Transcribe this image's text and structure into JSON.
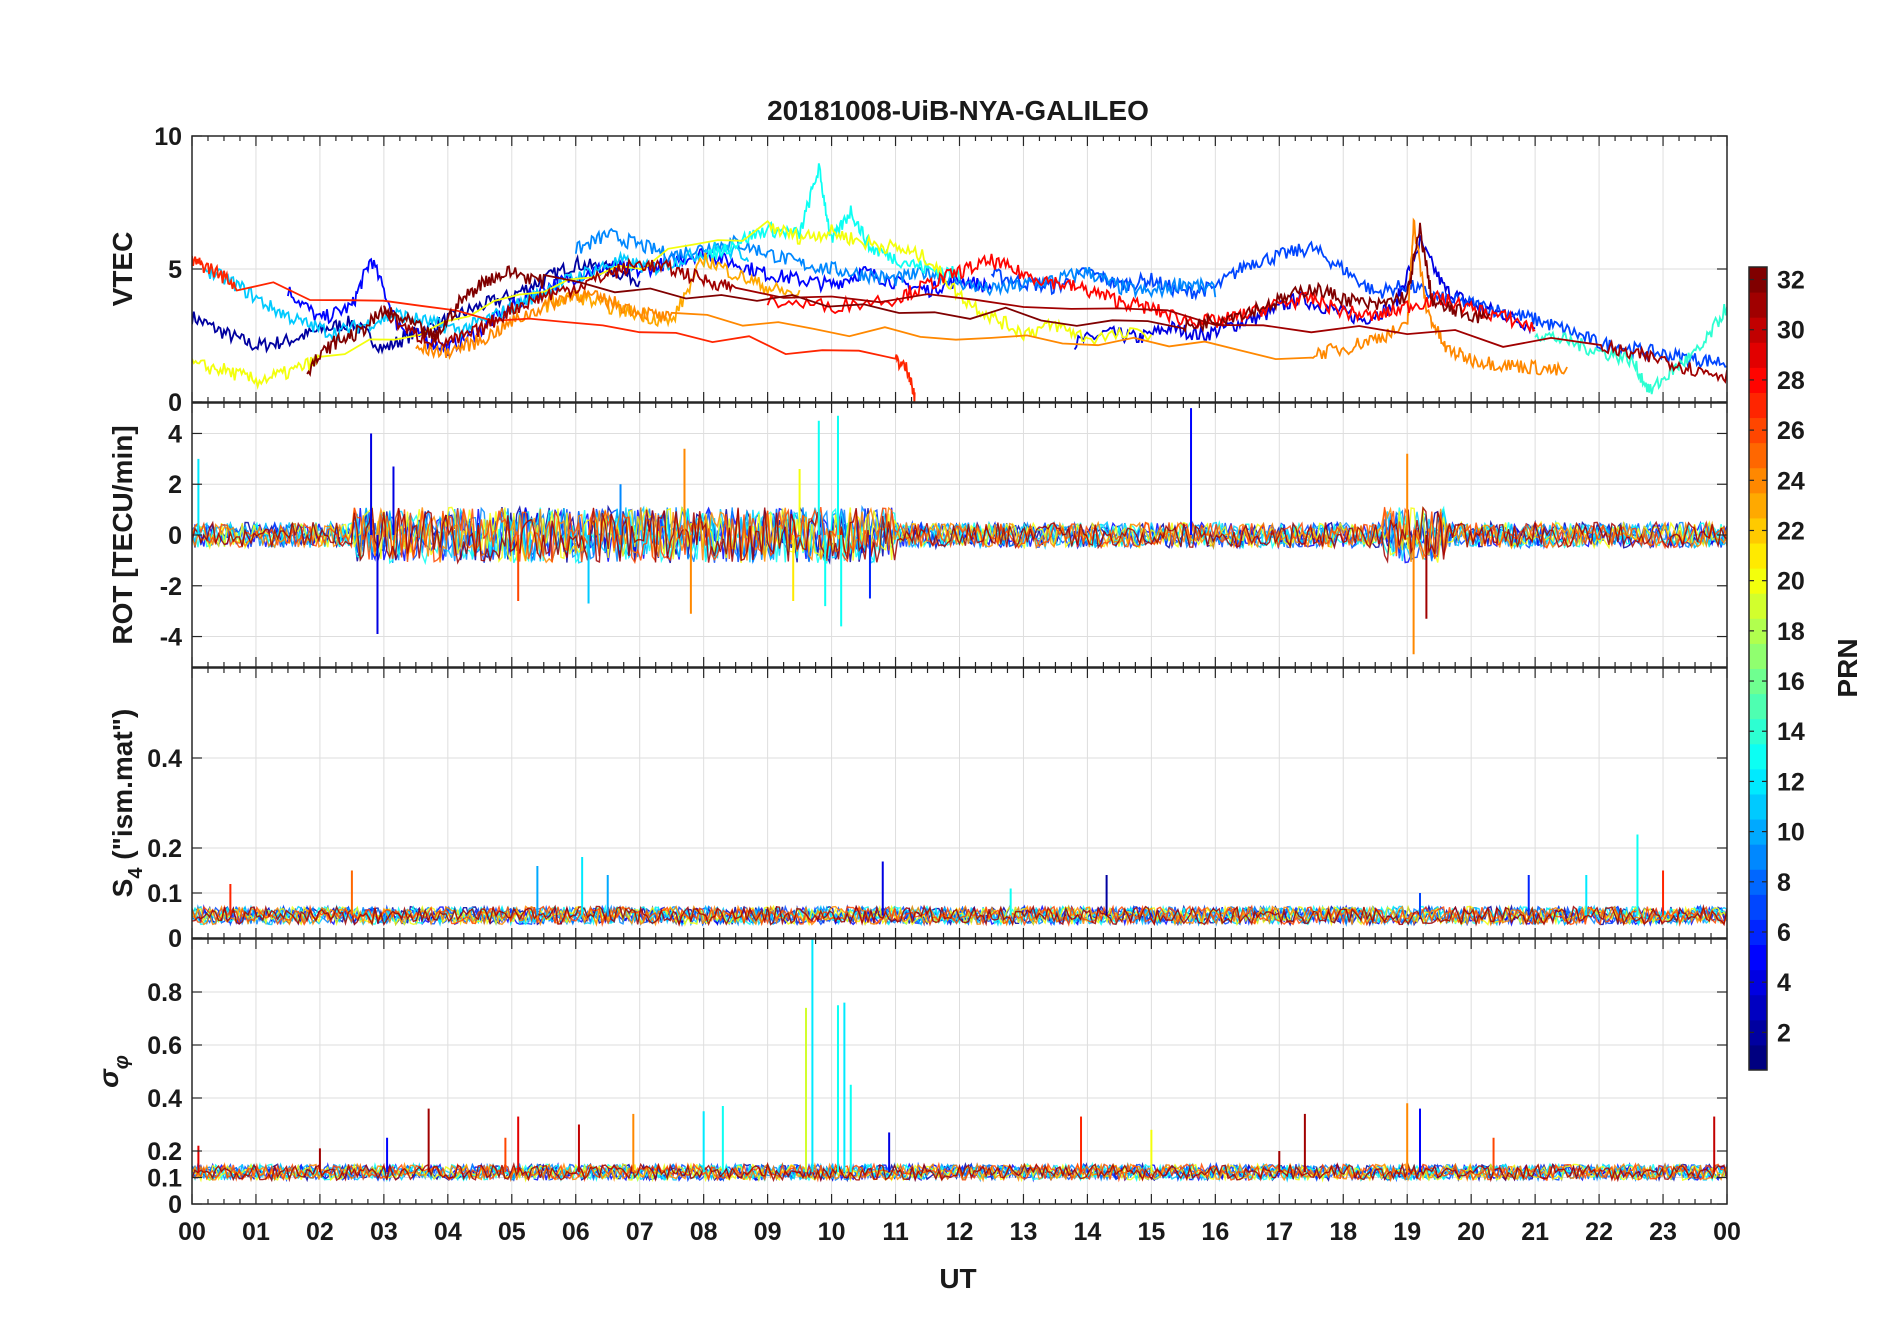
{
  "chart_data": {
    "title": "20181008-UiB-NYA-GALILEO",
    "type": "line",
    "xlabel": "UT",
    "xlim": [
      0,
      24
    ],
    "x_tick_labels": [
      "00",
      "01",
      "02",
      "03",
      "04",
      "05",
      "06",
      "07",
      "08",
      "09",
      "10",
      "11",
      "12",
      "13",
      "14",
      "15",
      "16",
      "17",
      "18",
      "19",
      "20",
      "21",
      "22",
      "23",
      "00"
    ],
    "colorbar": {
      "label": "PRN",
      "range": [
        1,
        32
      ],
      "tick_values": [
        2,
        4,
        6,
        8,
        10,
        12,
        14,
        16,
        18,
        20,
        22,
        24,
        26,
        28,
        30,
        32
      ],
      "tick_labels": [
        "2",
        "4",
        "6",
        "8",
        "10",
        "12",
        "14",
        "16",
        "18",
        "20",
        "22",
        "24",
        "26",
        "28",
        "30",
        "32"
      ],
      "colormap": "jet"
    },
    "panels": [
      {
        "id": "vtec",
        "ylabel": "VTEC",
        "ylim": [
          0,
          10
        ],
        "y_ticks": [
          0,
          5,
          10
        ],
        "y_tick_labels": [
          "0",
          "5",
          "10"
        ],
        "series": [
          {
            "prn": 2,
            "x": [
              0.0,
              0.5,
              1.0,
              1.5,
              2.0,
              2.5,
              3.0,
              3.5,
              4.0,
              4.5,
              5.0,
              5.5,
              6.0,
              6.5,
              7.0
            ],
            "y": [
              3.2,
              2.6,
              2.1,
              2.3,
              2.7,
              3.0,
              2.0,
              2.6,
              3.1,
              3.6,
              4.0,
              4.6,
              5.2,
              5.0,
              4.6
            ]
          },
          {
            "prn": 4,
            "x": [
              13.8,
              14.3,
              14.8,
              15.3,
              15.8,
              16.3,
              16.8,
              17.3,
              17.8,
              18.3,
              18.8,
              19.2,
              19.6,
              20.0,
              20.5,
              21.0
            ],
            "y": [
              2.2,
              2.6,
              2.4,
              2.8,
              2.5,
              2.9,
              3.3,
              3.9,
              3.5,
              3.1,
              3.6,
              6.0,
              4.2,
              3.7,
              3.3,
              2.8
            ]
          },
          {
            "prn": 5,
            "x": [
              1.5,
              2.0,
              2.5,
              2.8,
              3.2,
              3.6,
              4.0,
              4.5,
              5.0,
              5.5,
              6.0,
              6.5,
              7.0,
              7.5,
              8.0,
              8.5,
              9.0,
              9.5,
              10.0,
              10.5,
              11.0,
              11.5,
              12.0,
              12.5
            ],
            "y": [
              4.2,
              3.1,
              3.6,
              5.4,
              3.0,
              2.4,
              2.0,
              2.7,
              3.6,
              4.3,
              4.7,
              5.1,
              4.9,
              5.3,
              5.6,
              5.2,
              4.8,
              4.6,
              4.4,
              4.9,
              4.5,
              4.2,
              4.6,
              4.3
            ]
          },
          {
            "prn": 7,
            "x": [
              12.5,
              13.0,
              13.5,
              14.0,
              14.5,
              15.0,
              15.5,
              16.0,
              16.5,
              17.0,
              17.5,
              18.0,
              18.5,
              19.0,
              19.5,
              20.0,
              20.5,
              21.0,
              21.5,
              22.0,
              22.5,
              23.0,
              23.5,
              24.0
            ],
            "y": [
              4.8,
              4.5,
              4.3,
              4.9,
              4.4,
              4.6,
              4.1,
              4.3,
              5.2,
              5.5,
              5.8,
              5.0,
              4.1,
              4.4,
              3.9,
              3.7,
              3.4,
              3.1,
              2.7,
              2.2,
              2.0,
              1.8,
              1.6,
              1.5
            ]
          },
          {
            "prn": 9,
            "x": [
              6.0,
              6.5,
              7.0,
              7.5,
              8.0,
              8.5,
              9.0,
              9.5,
              10.0,
              10.5,
              11.0,
              11.5,
              12.0,
              12.5,
              13.0,
              13.5,
              14.0,
              14.5,
              15.0,
              15.5,
              16.0
            ],
            "y": [
              5.7,
              6.3,
              5.9,
              5.5,
              5.8,
              6.0,
              5.6,
              5.2,
              5.0,
              4.8,
              4.6,
              4.9,
              4.5,
              4.2,
              4.4,
              4.6,
              4.9,
              4.3,
              4.1,
              4.5,
              4.2
            ]
          },
          {
            "prn": 11,
            "x": [
              0.2,
              0.7,
              1.2,
              1.7,
              2.2,
              2.7,
              3.2,
              3.7,
              4.2,
              4.7,
              5.2,
              5.7,
              6.2,
              6.7,
              7.2,
              7.7,
              8.2,
              8.7
            ],
            "y": [
              5.0,
              4.4,
              3.6,
              3.0,
              2.6,
              2.9,
              3.3,
              3.0,
              2.7,
              3.2,
              3.8,
              4.4,
              4.9,
              5.3,
              5.0,
              5.4,
              5.8,
              5.5
            ]
          },
          {
            "prn": 13,
            "x": [
              8.0,
              8.5,
              9.0,
              9.5,
              9.8,
              10.0,
              10.3,
              10.6,
              11.0,
              11.5,
              12.0
            ],
            "y": [
              5.3,
              6.0,
              6.5,
              6.3,
              8.8,
              6.0,
              7.2,
              5.8,
              5.4,
              5.0,
              4.8
            ]
          },
          {
            "prn": 14,
            "x": [
              21.0,
              21.5,
              22.0,
              22.5,
              22.8,
              23.2,
              23.6,
              24.0
            ],
            "y": [
              2.6,
              2.3,
              1.9,
              1.6,
              0.4,
              1.3,
              2.0,
              3.6
            ]
          },
          {
            "prn": 20,
            "x": [
              0.0,
              0.5,
              1.0,
              1.5,
              2.0,
              9.0,
              9.5,
              10.0,
              10.5,
              11.0,
              11.5,
              12.0,
              12.5,
              13.0,
              13.5,
              14.0,
              15.0
            ],
            "y": [
              1.4,
              1.2,
              0.8,
              1.1,
              1.6,
              6.6,
              6.2,
              6.4,
              6.0,
              5.8,
              5.4,
              4.0,
              3.2,
              2.6,
              2.9,
              2.4,
              2.6
            ]
          },
          {
            "prn": 23,
            "x": [
              5.5,
              6.0,
              6.5,
              7.0,
              7.5,
              8.0,
              8.5,
              9.0,
              9.5
            ],
            "y": [
              3.6,
              4.0,
              3.6,
              3.3,
              3.0,
              5.4,
              4.8,
              4.3,
              4.0
            ]
          },
          {
            "prn": 24,
            "x": [
              3.5,
              4.0,
              4.5,
              5.0,
              5.5,
              6.0,
              6.5,
              7.0,
              7.5,
              17.5,
              18.0,
              18.5,
              19.0,
              19.1,
              19.3,
              19.6,
              20.0,
              20.5,
              21.0,
              21.5
            ],
            "y": [
              2.0,
              1.9,
              2.3,
              3.0,
              3.6,
              4.1,
              3.8,
              3.4,
              3.1,
              1.8,
              2.0,
              2.4,
              2.8,
              6.8,
              3.5,
              2.0,
              1.6,
              1.4,
              1.3,
              1.1
            ]
          },
          {
            "prn": 27,
            "x": [
              0.0,
              0.3,
              0.7,
              11.0,
              11.2,
              11.3
            ],
            "y": [
              5.3,
              5.0,
              4.4,
              1.6,
              1.2,
              0.1
            ]
          },
          {
            "prn": 28,
            "x": [
              9.0,
              10.0,
              11.0,
              11.5,
              12.0,
              12.5,
              13.0,
              13.5,
              14.0,
              14.5,
              15.0,
              15.5,
              16.0,
              16.5,
              17.0,
              17.5,
              18.0,
              18.5,
              19.0,
              19.5,
              20.0,
              20.5,
              21.0
            ],
            "y": [
              3.8,
              3.6,
              3.9,
              4.4,
              4.9,
              5.3,
              4.8,
              4.5,
              4.2,
              3.8,
              3.5,
              3.1,
              3.0,
              3.3,
              3.7,
              3.9,
              3.4,
              3.2,
              3.6,
              3.9,
              3.5,
              3.2,
              2.8
            ]
          },
          {
            "prn": 31,
            "x": [
              3.0,
              3.5,
              4.0,
              4.5,
              5.0,
              5.5,
              6.0,
              6.5,
              7.0,
              7.5,
              8.0,
              8.5,
              22.0,
              22.5,
              23.0,
              23.5,
              24.0
            ],
            "y": [
              3.4,
              2.5,
              2.2,
              2.7,
              3.5,
              4.0,
              4.3,
              4.8,
              5.2,
              5.0,
              4.6,
              4.3,
              2.1,
              1.8,
              1.6,
              1.2,
              1.0
            ]
          },
          {
            "prn": 32,
            "x": [
              1.8,
              2.2,
              2.6,
              3.0,
              3.4,
              3.8,
              4.2,
              4.6,
              5.0,
              5.5,
              15.5,
              16.0,
              16.5,
              17.0,
              17.5,
              18.0,
              18.5,
              19.0,
              19.2,
              19.4,
              19.8,
              20.3
            ],
            "y": [
              1.2,
              2.2,
              2.6,
              3.4,
              3.0,
              2.4,
              3.8,
              4.6,
              4.9,
              4.5,
              2.8,
              3.1,
              3.4,
              3.8,
              4.3,
              3.9,
              3.6,
              4.0,
              6.5,
              3.7,
              3.4,
              3.1
            ]
          }
        ]
      },
      {
        "id": "rot",
        "ylabel": "ROT [TECU/min]",
        "ylim": [
          -5.2,
          5.2
        ],
        "y_ticks": [
          -4,
          -2,
          0,
          2,
          4
        ],
        "y_tick_labels": [
          "-4",
          "-2",
          "0",
          "2",
          "4"
        ],
        "baseline": 0,
        "spikes": [
          {
            "x": 0.1,
            "y": 3.0,
            "prn": 12
          },
          {
            "x": 2.8,
            "y": 4.0,
            "prn": 4
          },
          {
            "x": 2.9,
            "y": -3.9,
            "prn": 4
          },
          {
            "x": 3.15,
            "y": 2.7,
            "prn": 4
          },
          {
            "x": 5.1,
            "y": -2.6,
            "prn": 26
          },
          {
            "x": 6.2,
            "y": -2.7,
            "prn": 11
          },
          {
            "x": 6.7,
            "y": 2.0,
            "prn": 9
          },
          {
            "x": 7.7,
            "y": 3.4,
            "prn": 24
          },
          {
            "x": 7.8,
            "y": -3.1,
            "prn": 24
          },
          {
            "x": 9.4,
            "y": -2.6,
            "prn": 21
          },
          {
            "x": 9.5,
            "y": 2.6,
            "prn": 20
          },
          {
            "x": 9.8,
            "y": 4.5,
            "prn": 13
          },
          {
            "x": 9.9,
            "y": -2.8,
            "prn": 13
          },
          {
            "x": 10.1,
            "y": 4.7,
            "prn": 13
          },
          {
            "x": 10.15,
            "y": -3.6,
            "prn": 13
          },
          {
            "x": 10.6,
            "y": -2.5,
            "prn": 6
          },
          {
            "x": 15.62,
            "y": 5.0,
            "prn": 5
          },
          {
            "x": 19.0,
            "y": 3.2,
            "prn": 24
          },
          {
            "x": 19.1,
            "y": -4.7,
            "prn": 24
          },
          {
            "x": 19.3,
            "y": -3.3,
            "prn": 31
          }
        ]
      },
      {
        "id": "s4",
        "ylabel": "S",
        "ylabel_sub": "4",
        "ylabel_suffix": " (\"ism.mat\")",
        "ylim": [
          0,
          0.6
        ],
        "y_ticks": [
          0,
          0.1,
          0.2,
          0.4
        ],
        "y_tick_labels": [
          "0",
          "0.1",
          "0.2",
          "0.4"
        ],
        "baseline": 0.05,
        "spikes": [
          {
            "x": 0.6,
            "y": 0.12,
            "prn": 27
          },
          {
            "x": 2.5,
            "y": 0.15,
            "prn": 25
          },
          {
            "x": 5.4,
            "y": 0.16,
            "prn": 10
          },
          {
            "x": 6.1,
            "y": 0.18,
            "prn": 12
          },
          {
            "x": 6.5,
            "y": 0.14,
            "prn": 10
          },
          {
            "x": 10.8,
            "y": 0.17,
            "prn": 4
          },
          {
            "x": 12.8,
            "y": 0.11,
            "prn": 13
          },
          {
            "x": 14.3,
            "y": 0.14,
            "prn": 2
          },
          {
            "x": 19.2,
            "y": 0.1,
            "prn": 7
          },
          {
            "x": 20.9,
            "y": 0.14,
            "prn": 6
          },
          {
            "x": 21.8,
            "y": 0.14,
            "prn": 12
          },
          {
            "x": 22.6,
            "y": 0.23,
            "prn": 13
          },
          {
            "x": 23.0,
            "y": 0.15,
            "prn": 27
          }
        ]
      },
      {
        "id": "sigphi",
        "ylabel": "σ",
        "ylabel_sub": "φ",
        "ylim": [
          0,
          1.0
        ],
        "y_ticks": [
          0,
          0.1,
          0.2,
          0.4,
          0.6,
          0.8
        ],
        "y_tick_labels": [
          "0",
          "0.1",
          "0.2",
          "0.4",
          "0.6",
          "0.8"
        ],
        "baseline": 0.12,
        "spikes": [
          {
            "x": 0.1,
            "y": 0.22,
            "prn": 29
          },
          {
            "x": 2.0,
            "y": 0.21,
            "prn": 31
          },
          {
            "x": 3.05,
            "y": 0.25,
            "prn": 5
          },
          {
            "x": 3.7,
            "y": 0.36,
            "prn": 31
          },
          {
            "x": 4.9,
            "y": 0.25,
            "prn": 26
          },
          {
            "x": 5.1,
            "y": 0.33,
            "prn": 29
          },
          {
            "x": 6.05,
            "y": 0.3,
            "prn": 30
          },
          {
            "x": 6.9,
            "y": 0.34,
            "prn": 24
          },
          {
            "x": 8.0,
            "y": 0.35,
            "prn": 12
          },
          {
            "x": 8.3,
            "y": 0.37,
            "prn": 13
          },
          {
            "x": 9.6,
            "y": 0.74,
            "prn": 19
          },
          {
            "x": 9.7,
            "y": 1.0,
            "prn": 12
          },
          {
            "x": 10.1,
            "y": 0.75,
            "prn": 13
          },
          {
            "x": 10.2,
            "y": 0.76,
            "prn": 12
          },
          {
            "x": 10.3,
            "y": 0.45,
            "prn": 13
          },
          {
            "x": 10.9,
            "y": 0.27,
            "prn": 4
          },
          {
            "x": 13.9,
            "y": 0.33,
            "prn": 27
          },
          {
            "x": 15.0,
            "y": 0.28,
            "prn": 20
          },
          {
            "x": 17.0,
            "y": 0.2,
            "prn": 31
          },
          {
            "x": 17.4,
            "y": 0.34,
            "prn": 31
          },
          {
            "x": 19.0,
            "y": 0.38,
            "prn": 24
          },
          {
            "x": 19.2,
            "y": 0.36,
            "prn": 5
          },
          {
            "x": 20.35,
            "y": 0.25,
            "prn": 26
          },
          {
            "x": 23.8,
            "y": 0.33,
            "prn": 30
          }
        ]
      }
    ]
  }
}
